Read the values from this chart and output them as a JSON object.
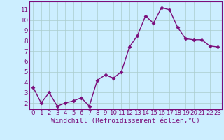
{
  "x": [
    0,
    1,
    2,
    3,
    4,
    5,
    6,
    7,
    8,
    9,
    10,
    11,
    12,
    13,
    14,
    15,
    16,
    17,
    18,
    19,
    20,
    21,
    22,
    23
  ],
  "y": [
    3.5,
    2.0,
    3.0,
    1.7,
    2.0,
    2.2,
    2.5,
    1.7,
    4.2,
    4.7,
    4.4,
    5.0,
    7.4,
    8.5,
    10.4,
    9.7,
    11.2,
    11.0,
    9.3,
    8.2,
    8.1,
    8.1,
    7.5,
    7.4
  ],
  "line_color": "#7B0D7B",
  "marker": "D",
  "marker_size": 2.5,
  "linewidth": 1.0,
  "xlabel": "Windchill (Refroidissement éolien,°C)",
  "xlabel_fontsize": 6.8,
  "ylabel_ticks": [
    2,
    3,
    4,
    5,
    6,
    7,
    8,
    9,
    10,
    11
  ],
  "xlim": [
    -0.5,
    23.5
  ],
  "ylim": [
    1.4,
    11.8
  ],
  "background_color": "#cceeff",
  "grid_color": "#aacccc",
  "tick_color": "#7B0D7B",
  "tick_fontsize": 6.2,
  "x_tick_labels": [
    "0",
    "1",
    "2",
    "3",
    "4",
    "5",
    "6",
    "7",
    "8",
    "9",
    "10",
    "11",
    "12",
    "13",
    "14",
    "15",
    "16",
    "17",
    "18",
    "19",
    "20",
    "21",
    "22",
    "23"
  ]
}
